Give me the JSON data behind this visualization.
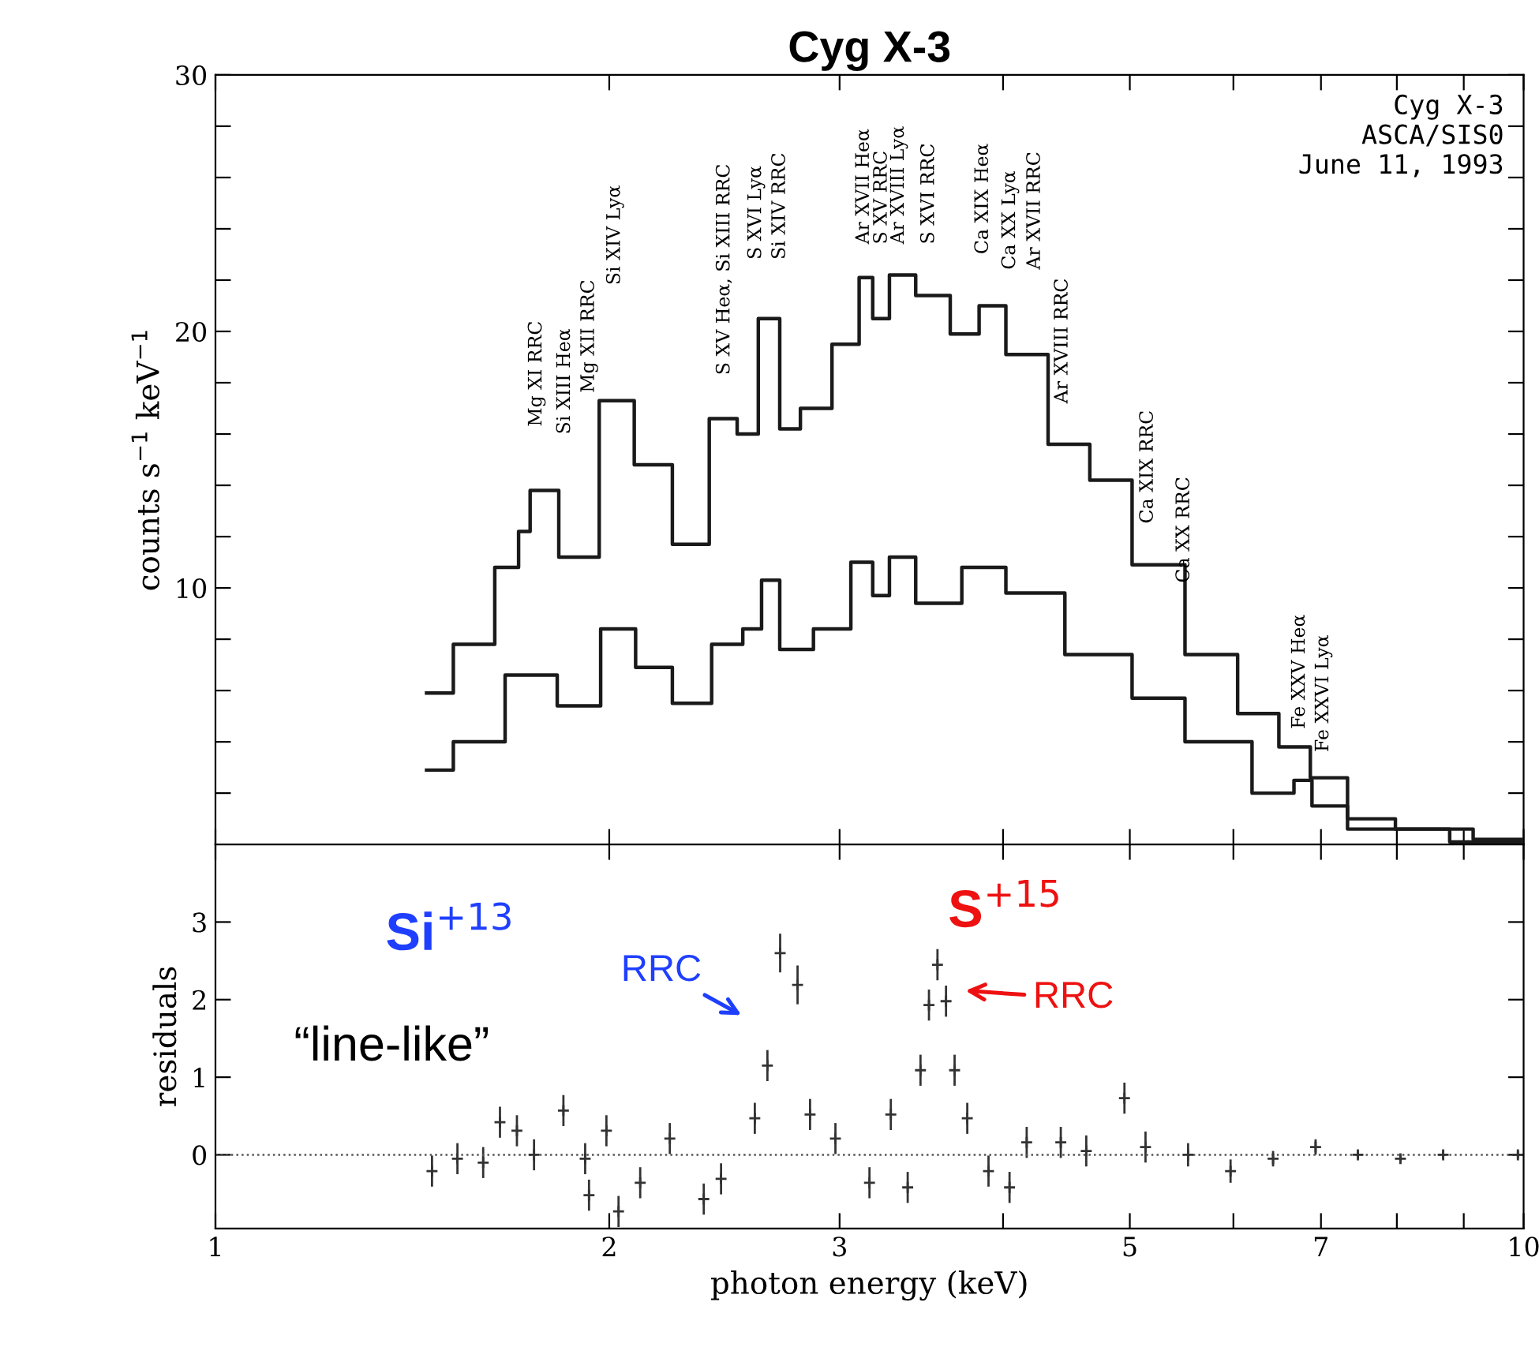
{
  "chart_data": [
    {
      "type": "step",
      "title": "Cyg X-3",
      "ylabel": "counts s$^{−1}$ keV$^{−1}$",
      "log": "x",
      "xlim": [
        1,
        10
      ],
      "xticks": [
        1,
        2,
        3,
        {
          "value": 4,
          "label": null
        },
        5,
        {
          "value": 6,
          "label": null
        },
        7,
        {
          "value": 8,
          "label": null
        },
        {
          "value": 9,
          "label": null
        },
        10
      ],
      "ylim": [
        0,
        30
      ],
      "yticks": [
        {
          "value": 2,
          "label": null
        },
        {
          "value": 4,
          "label": null
        },
        {
          "value": 6,
          "label": null
        },
        {
          "value": 8,
          "label": null
        },
        10,
        {
          "value": 12,
          "label": null
        },
        {
          "value": 14,
          "label": null
        },
        {
          "value": 16,
          "label": null
        },
        {
          "value": 18,
          "label": null
        },
        20,
        {
          "value": 22,
          "label": null
        },
        {
          "value": 24,
          "label": null
        },
        {
          "value": 26,
          "label": null
        },
        {
          "value": 28,
          "label": null
        },
        30
      ],
      "tick_labels": "y",
      "grid": false,
      "legend": false,
      "marker": "none",
      "line_style": "solid",
      "series": [
        {
          "color": "#1a1a1a",
          "x": [
            1.45,
            1.59,
            1.68,
            1.73,
            1.75,
            1.91,
            2.02,
            2.16,
            2.31,
            2.46,
            2.55,
            2.65,
            2.75,
            2.85,
            3.07,
            3.14,
            3.22,
            3.33,
            3.53,
            3.76,
            3.91,
            4.13,
            4.53,
            4.79,
            5.25,
            5.77,
            6.32,
            6.68,
            7.06,
            7.61,
            8.35,
            9.95
          ],
          "values": [
            5.9,
            7.8,
            10.8,
            12.2,
            13.8,
            11.2,
            17.3,
            14.8,
            11.7,
            16.6,
            16.0,
            20.5,
            16.2,
            17.0,
            19.5,
            22.1,
            20.5,
            22.2,
            21.4,
            19.9,
            21.0,
            19.1,
            15.6,
            14.2,
            10.9,
            7.4,
            5.1,
            3.8,
            2.6,
            1.0,
            0.6,
            0.2
          ]
        },
        {
          "color": "#1a1a1a",
          "x": [
            1.45,
            1.59,
            1.74,
            1.91,
            2.03,
            2.16,
            2.31,
            2.48,
            2.58,
            2.65,
            2.75,
            2.98,
            3.14,
            3.22,
            3.33,
            3.53,
            3.91,
            4.13,
            4.79,
            5.25,
            5.77,
            6.63,
            6.72,
            7.06,
            7.61,
            9.95
          ],
          "values": [
            2.9,
            4.0,
            6.6,
            5.4,
            8.4,
            6.9,
            5.5,
            7.8,
            8.4,
            10.3,
            7.6,
            8.4,
            11.0,
            9.7,
            11.2,
            9.4,
            10.8,
            9.8,
            7.4,
            5.7,
            4.0,
            2.0,
            2.5,
            1.5,
            0.6,
            0.1
          ]
        }
      ],
      "annotations": [
        "Mg XI RRC",
        "Si XIII Heα",
        "Mg XII RRC",
        "Si XIV Lyα",
        "S XV Heα, Si XIII RRC",
        "S XVI Lyα",
        "Si XIV RRC",
        "Ar XVII Heα",
        "S XV RRC",
        "Ar XVIII Lyα",
        "S XVI RRC",
        "Ca XIX Heα",
        "Ca XX Lyα",
        "Ar XVII RRC",
        "Ar XVIII RRC",
        "Ca XIX RRC",
        "Ca XX RRC",
        "Fe XXV Heα",
        "Fe XXVI Lyα",
        "Cyg X-3\nASCA/SIS0\nJune 11, 1993"
      ]
    },
    {
      "type": "scatter",
      "ylabel": "residuals",
      "xlabel": "photon energy (keV)",
      "log": "x",
      "xlim": [
        1,
        10
      ],
      "xticks": [
        1,
        2,
        3,
        {
          "value": 4,
          "label": null
        },
        5,
        {
          "value": 6,
          "label": null
        },
        7,
        {
          "value": 8,
          "label": null
        },
        {
          "value": 9,
          "label": null
        },
        10
      ],
      "ylim": [
        -0.95,
        4.0
      ],
      "yticks": [
        0,
        1,
        2,
        3
      ],
      "grid": false,
      "legend": false,
      "marker": "cross",
      "ref_lines": [
        {
          "axis": "y",
          "value": 0,
          "color": "#555555",
          "line_style": "dotted"
        }
      ],
      "series": [
        {
          "color": "#333333",
          "x": [
            1.464,
            1.531,
            1.602,
            1.65,
            1.7,
            1.752,
            1.845,
            1.917,
            1.93,
            1.99,
            2.033,
            2.112,
            2.225,
            2.362,
            2.435,
            2.584,
            2.642,
            2.702,
            2.786,
            2.848,
            2.978,
            3.162,
            3.283,
            3.382,
            3.459,
            3.511,
            3.564,
            3.618,
            3.673,
            3.756,
            3.899,
            4.046,
            4.17,
            4.428,
            4.631,
            4.953,
            5.14,
            5.54,
            5.97,
            6.434,
            6.934,
            7.47,
            8.051,
            8.68,
            9.9
          ],
          "values": [
            -0.21,
            -0.05,
            -0.1,
            0.42,
            0.31,
            0.0,
            0.57,
            -0.05,
            -0.52,
            0.31,
            -0.73,
            -0.36,
            0.21,
            -0.57,
            -0.31,
            0.47,
            1.15,
            2.6,
            2.19,
            0.52,
            0.21,
            -0.36,
            0.52,
            -0.42,
            1.09,
            1.93,
            2.45,
            1.98,
            1.09,
            0.47,
            -0.21,
            -0.42,
            0.16,
            0.16,
            0.05,
            0.73,
            0.1,
            0.0,
            -0.21,
            -0.05,
            0.1,
            0.0,
            -0.05,
            0.0,
            0.0
          ],
          "errors": [
            0.2,
            0.2,
            0.2,
            0.2,
            0.2,
            0.2,
            0.2,
            0.2,
            0.2,
            0.2,
            0.2,
            0.2,
            0.2,
            0.2,
            0.2,
            0.2,
            0.2,
            0.25,
            0.25,
            0.2,
            0.2,
            0.2,
            0.2,
            0.2,
            0.2,
            0.2,
            0.2,
            0.2,
            0.2,
            0.2,
            0.2,
            0.2,
            0.2,
            0.2,
            0.2,
            0.2,
            0.2,
            0.15,
            0.15,
            0.1,
            0.1,
            0.05,
            0.05,
            0.05,
            0.05
          ]
        }
      ],
      "annotations": [
        "Si$^{+13}$",
        "“line-like”",
        "RRC",
        "S$^{+15}$",
        "RRC"
      ]
    }
  ]
}
